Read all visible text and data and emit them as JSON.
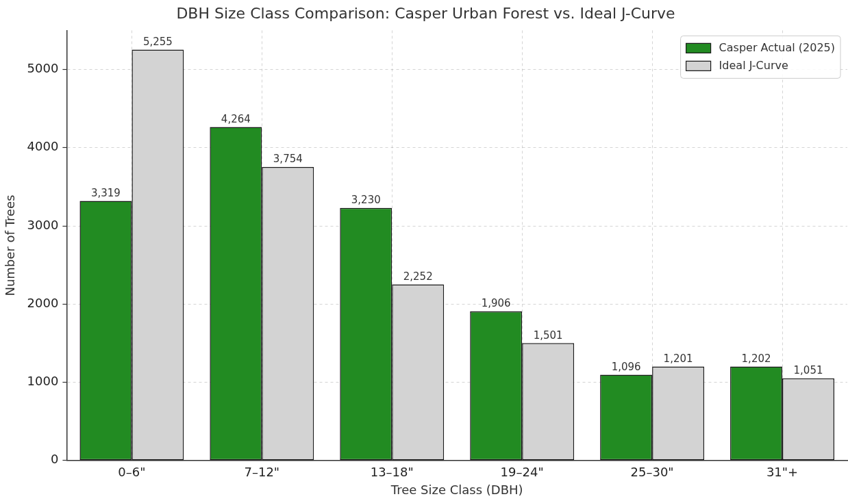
{
  "chart_data": {
    "type": "bar",
    "title": "DBH Size Class Comparison: Casper Urban Forest vs. Ideal J-Curve",
    "xlabel": "Tree Size Class (DBH)",
    "ylabel": "Number of Trees",
    "categories": [
      "0–6\"",
      "7–12\"",
      "13–18\"",
      "19–24\"",
      "25–30\"",
      "31\"+"
    ],
    "series": [
      {
        "name": "Casper Actual (2025)",
        "color": "#228b22",
        "values": [
          3319,
          4264,
          3230,
          1906,
          1096,
          1202
        ],
        "value_labels": [
          "3,319",
          "4,264",
          "3,230",
          "1,906",
          "1,096",
          "1,202"
        ]
      },
      {
        "name": "Ideal J-Curve",
        "color": "#d3d3d3",
        "values": [
          5255,
          3754,
          2252,
          1501,
          1201,
          1051
        ],
        "value_labels": [
          "5,255",
          "3,754",
          "2,252",
          "1,501",
          "1,201",
          "1,051"
        ]
      }
    ],
    "ylim": [
      0,
      5500
    ],
    "yticks": [
      0,
      1000,
      2000,
      3000,
      4000,
      5000
    ],
    "grid": true,
    "legend": "top right"
  }
}
